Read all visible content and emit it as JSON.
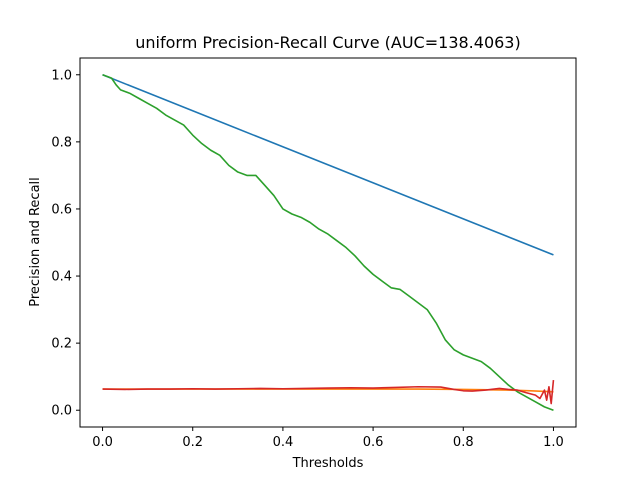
{
  "chart_data": {
    "type": "line",
    "title": "uniform Precision-Recall Curve (AUC=138.4063)",
    "xlabel": "Thresholds",
    "ylabel": "Precision and Recall",
    "xlim": [
      -0.05,
      1.05
    ],
    "ylim": [
      -0.05,
      1.05
    ],
    "xticks": [
      0.0,
      0.2,
      0.4,
      0.6,
      0.8,
      1.0
    ],
    "xtick_labels": [
      "0.0",
      "0.2",
      "0.4",
      "0.6",
      "0.8",
      "1.0"
    ],
    "yticks": [
      0.0,
      0.2,
      0.4,
      0.6,
      0.8,
      1.0
    ],
    "ytick_labels": [
      "0.0",
      "0.2",
      "0.4",
      "0.6",
      "0.8",
      "1.0"
    ],
    "grid": false,
    "series": [
      {
        "color": "#1f77b4",
        "x": [
          0.0,
          1.0
        ],
        "y": [
          1.0,
          0.463
        ]
      },
      {
        "color": "#ff7f0e",
        "x": [
          0.0,
          0.1,
          0.2,
          0.3,
          0.4,
          0.5,
          0.6,
          0.7,
          0.8,
          0.9,
          0.95,
          1.0
        ],
        "y": [
          0.063,
          0.063,
          0.063,
          0.063,
          0.063,
          0.063,
          0.063,
          0.063,
          0.062,
          0.06,
          0.058,
          0.055
        ]
      },
      {
        "color": "#2ca02c",
        "x": [
          0.0,
          0.02,
          0.03,
          0.04,
          0.06,
          0.08,
          0.1,
          0.12,
          0.14,
          0.16,
          0.18,
          0.2,
          0.22,
          0.24,
          0.26,
          0.28,
          0.3,
          0.32,
          0.34,
          0.36,
          0.38,
          0.4,
          0.42,
          0.44,
          0.46,
          0.48,
          0.5,
          0.52,
          0.54,
          0.56,
          0.58,
          0.6,
          0.62,
          0.64,
          0.66,
          0.68,
          0.7,
          0.72,
          0.74,
          0.76,
          0.78,
          0.8,
          0.82,
          0.84,
          0.86,
          0.88,
          0.9,
          0.92,
          0.94,
          0.96,
          0.98,
          1.0
        ],
        "y": [
          1.0,
          0.99,
          0.97,
          0.955,
          0.945,
          0.93,
          0.915,
          0.9,
          0.88,
          0.865,
          0.85,
          0.82,
          0.795,
          0.775,
          0.76,
          0.73,
          0.71,
          0.7,
          0.7,
          0.67,
          0.64,
          0.6,
          0.585,
          0.575,
          0.56,
          0.54,
          0.525,
          0.505,
          0.485,
          0.46,
          0.43,
          0.405,
          0.385,
          0.365,
          0.36,
          0.34,
          0.32,
          0.3,
          0.26,
          0.21,
          0.18,
          0.165,
          0.155,
          0.145,
          0.125,
          0.1,
          0.075,
          0.055,
          0.04,
          0.025,
          0.01,
          0.0
        ]
      },
      {
        "color": "#d62728",
        "x": [
          0.0,
          0.05,
          0.1,
          0.15,
          0.2,
          0.25,
          0.3,
          0.35,
          0.4,
          0.45,
          0.5,
          0.55,
          0.6,
          0.65,
          0.7,
          0.75,
          0.78,
          0.8,
          0.82,
          0.85,
          0.88,
          0.9,
          0.92,
          0.94,
          0.96,
          0.97,
          0.98,
          0.985,
          0.99,
          0.995,
          1.0
        ],
        "y": [
          0.063,
          0.062,
          0.063,
          0.063,
          0.064,
          0.063,
          0.064,
          0.065,
          0.064,
          0.065,
          0.066,
          0.067,
          0.066,
          0.068,
          0.07,
          0.069,
          0.062,
          0.058,
          0.057,
          0.06,
          0.065,
          0.062,
          0.06,
          0.052,
          0.045,
          0.035,
          0.06,
          0.03,
          0.07,
          0.02,
          0.09
        ]
      }
    ]
  }
}
